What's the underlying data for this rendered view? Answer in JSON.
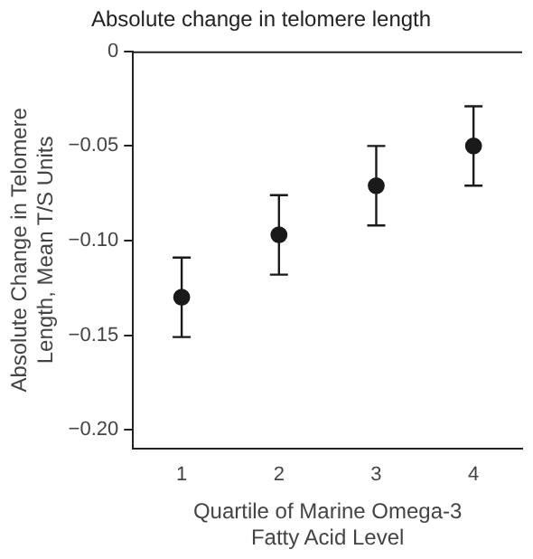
{
  "chart_data": {
    "type": "scatter",
    "title": "Absolute change in telomere length",
    "xlabel": "Quartile of Marine Omega-3 Fatty Acid Level",
    "ylabel": "Absolute Change in Telomere Length, Mean T/S Units",
    "categories": [
      "1",
      "2",
      "3",
      "4"
    ],
    "series": [
      {
        "color": "#1a1a1a",
        "values": [
          -0.13,
          -0.097,
          -0.071,
          -0.05
        ],
        "errors": [
          0.021,
          0.021,
          0.021,
          0.021
        ]
      }
    ],
    "ylim": [
      -0.21,
      0
    ],
    "yticks": [
      0,
      {
        "value": -0.05,
        "label": "−0.05"
      },
      {
        "value": -0.1,
        "label": "−0.10"
      },
      {
        "value": -0.15,
        "label": "−0.15"
      },
      {
        "value": -0.2,
        "label": "−0.20"
      }
    ],
    "grid": false,
    "legend": false,
    "marker": "circle"
  }
}
